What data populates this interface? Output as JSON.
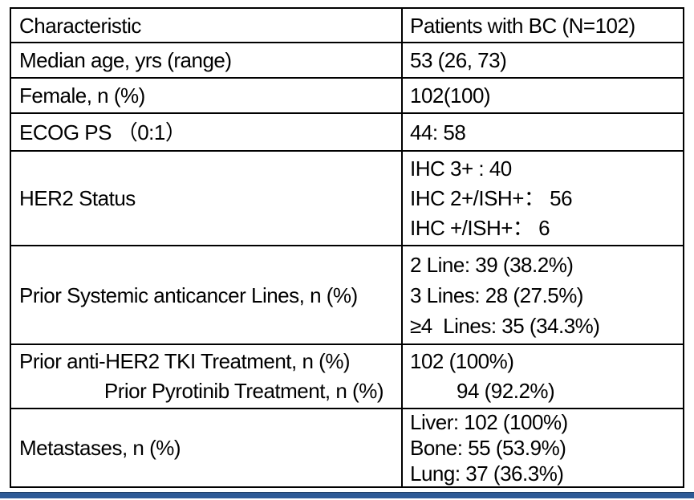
{
  "colors": {
    "background": "#FFFFFF",
    "table_border": "#000000",
    "text": "#000000",
    "accent_bar": "#2E5A96"
  },
  "table": {
    "header": {
      "col1": "Characteristic",
      "col2": "Patients with BC (N=102)"
    },
    "rows": [
      {
        "label_lines": [
          "Median age, yrs (range)"
        ],
        "value_lines": [
          "53 (26, 73)"
        ]
      },
      {
        "label_lines": [
          "Female, n (%)"
        ],
        "value_lines": [
          "102(100)"
        ]
      },
      {
        "label_lines": [
          "ECOG PS （0:1）"
        ],
        "value_lines": [
          "44: 58"
        ]
      },
      {
        "label_lines": [
          "HER2 Status"
        ],
        "value_lines": [
          "IHC 3+ : 40",
          "IHC 2+/ISH+： 56",
          "IHC +/ISH+： 6"
        ]
      },
      {
        "label_lines": [
          "Prior Systemic anticancer Lines, n (%)"
        ],
        "value_lines": [
          "2 Line: 39 (38.2%)",
          "3 Lines: 28 (27.5%)",
          "≥4  Lines: 35 (34.3%)"
        ]
      },
      {
        "label_lines": [
          "Prior anti-HER2 TKI Treatment, n (%)",
          "Prior Pyrotinib Treatment, n (%)"
        ],
        "value_lines": [
          "102 (100%)",
          "94 (92.2%)"
        ]
      },
      {
        "label_lines": [
          "Metastases, n (%)"
        ],
        "value_lines": [
          "Liver: 102 (100%)",
          "Bone: 55 (53.9%)",
          "Lung: 37 (36.3%)"
        ]
      }
    ]
  }
}
